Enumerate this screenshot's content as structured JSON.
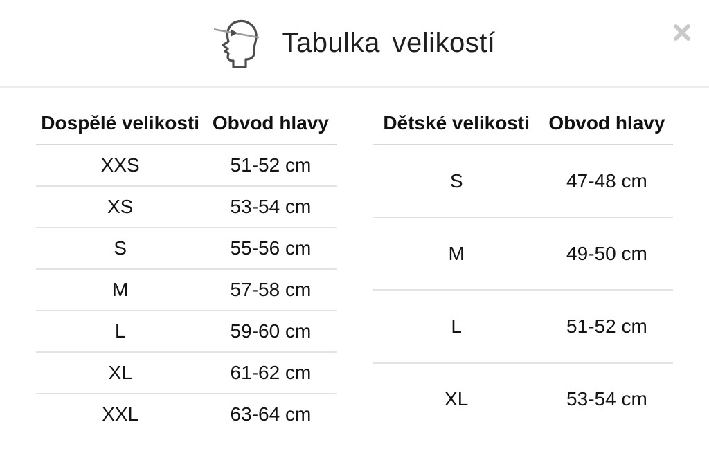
{
  "modal": {
    "title": "Tabulka velikostí"
  },
  "icons": {
    "header_icon": "head-circumference-icon",
    "close_icon": "close-icon"
  },
  "tables": [
    {
      "name": "adult-sizes-table",
      "headers": [
        "Dospělé velikosti",
        "Obvod hlavy"
      ],
      "rows": [
        [
          "XXS",
          "51-52 cm"
        ],
        [
          "XS",
          "53-54 cm"
        ],
        [
          "S",
          "55-56 cm"
        ],
        [
          "M",
          "57-58 cm"
        ],
        [
          "L",
          "59-60 cm"
        ],
        [
          "XL",
          "61-62 cm"
        ],
        [
          "XXL",
          "63-64 cm"
        ]
      ]
    },
    {
      "name": "children-sizes-table",
      "headers": [
        "Dětské velikosti",
        "Obvod hlavy"
      ],
      "rows": [
        [
          "S",
          "47-48 cm"
        ],
        [
          "M",
          "49-50 cm"
        ],
        [
          "L",
          "51-52 cm"
        ],
        [
          "XL",
          "53-54 cm"
        ]
      ]
    }
  ],
  "colors": {
    "text": "#1a1a1a",
    "header_divider": "#ececec",
    "table_header_rule": "#d7d7d7",
    "table_row_rule": "#e3e3e3",
    "close_icon": "#c9c9c9",
    "icon_stroke": "#4d4d4d",
    "icon_tape": "#9a9a9a"
  }
}
